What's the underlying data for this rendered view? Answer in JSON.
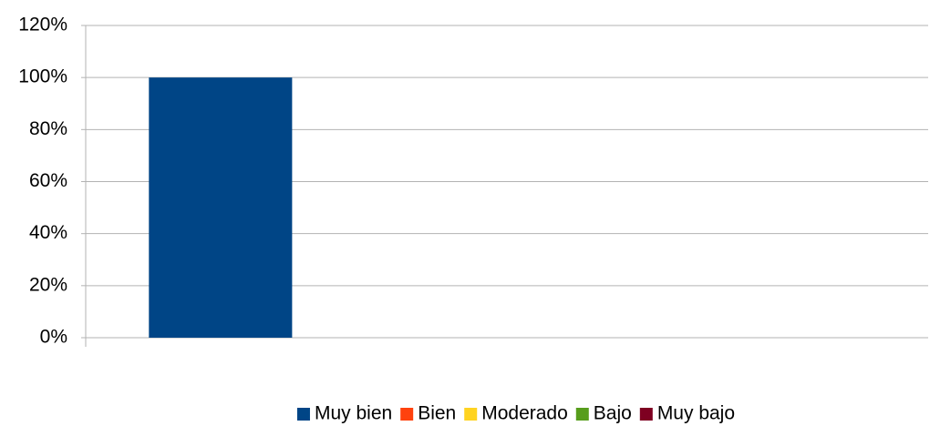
{
  "chart_data": {
    "type": "bar",
    "categories": [
      null
    ],
    "series": [
      {
        "name": "Muy bien",
        "color": "#004586",
        "values": [
          100
        ]
      },
      {
        "name": "Bien",
        "color": "#ff420e",
        "values": [
          0
        ]
      },
      {
        "name": "Moderado",
        "color": "#ffd320",
        "values": [
          0
        ]
      },
      {
        "name": "Bajo",
        "color": "#579d1c",
        "values": [
          0
        ]
      },
      {
        "name": "Muy bajo",
        "color": "#7e0021",
        "values": [
          0
        ]
      }
    ],
    "ylim": [
      0,
      120
    ],
    "yticks": [
      {
        "value": 0,
        "label": "0%"
      },
      {
        "value": 20,
        "label": "20%"
      },
      {
        "value": 40,
        "label": "40%"
      },
      {
        "value": 60,
        "label": "60%"
      },
      {
        "value": 80,
        "label": "80%"
      },
      {
        "value": 100,
        "label": "100%"
      },
      {
        "value": 120,
        "label": "120%"
      }
    ],
    "grid": true,
    "legend": "bottom"
  }
}
